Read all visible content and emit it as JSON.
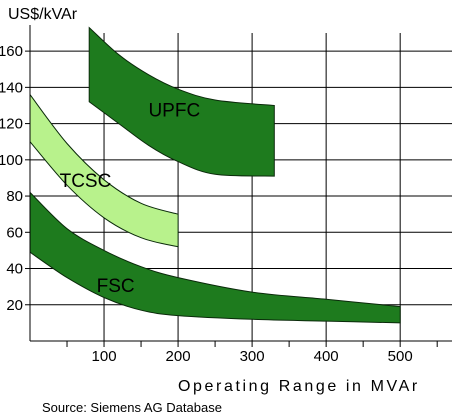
{
  "chart_data": {
    "type": "area",
    "ylabel": "US$/kVAr",
    "xlabel": "Operating Range in MVAr",
    "source": "Source: Siemens AG Database",
    "xlim": [
      0,
      570
    ],
    "ylim": [
      0,
      170
    ],
    "xticks": [
      100,
      200,
      300,
      400,
      500
    ],
    "yticks": [
      20,
      40,
      60,
      80,
      100,
      120,
      140,
      160
    ],
    "grid": true,
    "series": [
      {
        "name": "FSC",
        "color": "#1e7b1e",
        "upper": [
          [
            0,
            82
          ],
          [
            50,
            62
          ],
          [
            100,
            50
          ],
          [
            150,
            41
          ],
          [
            200,
            35
          ],
          [
            300,
            27
          ],
          [
            400,
            23
          ],
          [
            500,
            19
          ]
        ],
        "lower": [
          [
            500,
            10
          ],
          [
            400,
            11
          ],
          [
            300,
            12
          ],
          [
            200,
            14
          ],
          [
            150,
            17
          ],
          [
            100,
            24
          ],
          [
            50,
            35
          ],
          [
            0,
            49
          ]
        ]
      },
      {
        "name": "TCSC",
        "color": "#b8f28c",
        "upper": [
          [
            0,
            136
          ],
          [
            50,
            109
          ],
          [
            100,
            89
          ],
          [
            150,
            76
          ],
          [
            200,
            70
          ]
        ],
        "lower": [
          [
            200,
            52
          ],
          [
            150,
            57
          ],
          [
            100,
            68
          ],
          [
            50,
            86
          ],
          [
            0,
            110
          ]
        ]
      },
      {
        "name": "UPFC",
        "color": "#1e7b1e",
        "upper": [
          [
            80,
            173
          ],
          [
            120,
            158
          ],
          [
            160,
            147
          ],
          [
            200,
            139
          ],
          [
            250,
            133
          ],
          [
            330,
            130
          ]
        ],
        "lower": [
          [
            330,
            91
          ],
          [
            250,
            92
          ],
          [
            200,
            99
          ],
          [
            160,
            108
          ],
          [
            120,
            120
          ],
          [
            80,
            132
          ]
        ]
      }
    ]
  }
}
